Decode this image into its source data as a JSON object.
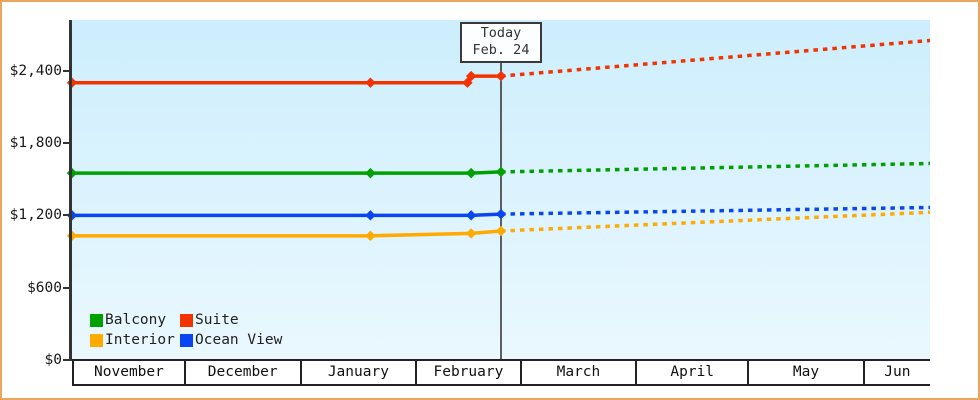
{
  "frame": {
    "border_color": "#EBA55E",
    "background_color": "#FFFFFF"
  },
  "chart_data": {
    "type": "line",
    "title": "",
    "xlabel": "",
    "ylabel": "",
    "plot_background": {
      "top_color": "#CDEEFD",
      "bottom_color": "#EAF8FE"
    },
    "axis_color": "#333333",
    "grid": "off",
    "legend_position": "bottom-left-inside",
    "y_axis": {
      "max_value": 2820,
      "ticks": [
        {
          "value": 0,
          "label": "$0"
        },
        {
          "value": 600,
          "label": "$600"
        },
        {
          "value": 1200,
          "label": "$1,200"
        },
        {
          "value": 1800,
          "label": "$1,800"
        },
        {
          "value": 2400,
          "label": "$2,400"
        }
      ]
    },
    "x_axis": {
      "day_origin": "Nov 1",
      "total_days_shown": 230,
      "months": [
        {
          "label": "November",
          "days": 30
        },
        {
          "label": "December",
          "days": 31
        },
        {
          "label": "January",
          "days": 31
        },
        {
          "label": "February",
          "days": 28
        },
        {
          "label": "March",
          "days": 31
        },
        {
          "label": "April",
          "days": 30
        },
        {
          "label": "May",
          "days": 31
        },
        {
          "label": "Jun",
          "days": 18
        }
      ]
    },
    "today_marker": {
      "line1": "Today",
      "line2": "Feb. 24",
      "day": 115,
      "color": "#3a3a3a"
    },
    "series": [
      {
        "name": "Suite",
        "color": "#F23300",
        "history": [
          [
            0,
            2300
          ],
          [
            80,
            2300
          ],
          [
            106,
            2300
          ],
          [
            107,
            2355
          ],
          [
            115,
            2355
          ]
        ],
        "forecast": [
          [
            115,
            2355
          ],
          [
            230,
            2650
          ]
        ]
      },
      {
        "name": "Balcony",
        "color": "#00A000",
        "history": [
          [
            0,
            1550
          ],
          [
            80,
            1550
          ],
          [
            107,
            1550
          ],
          [
            115,
            1560
          ]
        ],
        "forecast": [
          [
            115,
            1560
          ],
          [
            230,
            1630
          ]
        ]
      },
      {
        "name": "Ocean View",
        "color": "#0A46F0",
        "history": [
          [
            0,
            1200
          ],
          [
            80,
            1200
          ],
          [
            107,
            1200
          ],
          [
            115,
            1210
          ]
        ],
        "forecast": [
          [
            115,
            1210
          ],
          [
            230,
            1265
          ]
        ]
      },
      {
        "name": "Interior",
        "color": "#FFAA00",
        "history": [
          [
            0,
            1030
          ],
          [
            80,
            1030
          ],
          [
            107,
            1050
          ],
          [
            115,
            1070
          ]
        ],
        "forecast": [
          [
            115,
            1070
          ],
          [
            230,
            1225
          ]
        ]
      }
    ],
    "legend": {
      "items": [
        {
          "label": "Balcony",
          "color": "#00A000"
        },
        {
          "label": "Suite",
          "color": "#F23300"
        },
        {
          "label": "Interior",
          "color": "#FFAA00"
        },
        {
          "label": "Ocean View",
          "color": "#0A46F0"
        }
      ]
    }
  }
}
